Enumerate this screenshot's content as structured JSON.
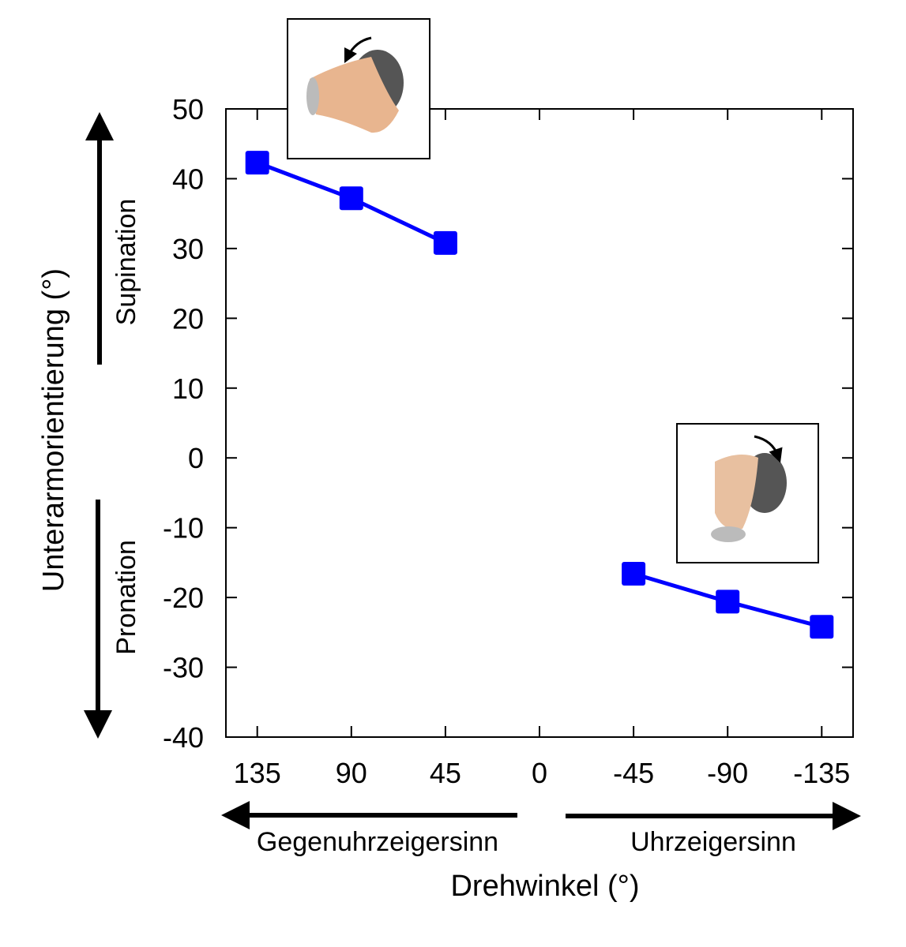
{
  "chart_data": {
    "type": "line",
    "title": "",
    "xlabel": "Drehwinkel (°)",
    "ylabel": "Unterarmorientierung (°)",
    "xlim": [
      150,
      -150
    ],
    "ylim": [
      -40,
      50
    ],
    "x_ticks": [
      135,
      90,
      45,
      0,
      -45,
      -90,
      -135
    ],
    "x_tick_labels": [
      "135",
      "90",
      "45",
      "0",
      "-45",
      "-90",
      "-135"
    ],
    "y_ticks": [
      50,
      40,
      30,
      20,
      10,
      0,
      -10,
      -20,
      -30,
      -40
    ],
    "y_tick_labels": [
      "50",
      "40",
      "30",
      "20",
      "10",
      "0",
      "-10",
      "-20",
      "-30",
      "-40"
    ],
    "grid": false,
    "series": [
      {
        "name": "Gegenuhrzeigersinn",
        "color": "#0000ff",
        "marker": "square",
        "x": [
          135,
          90,
          45
        ],
        "y": [
          42.3,
          37.2,
          30.8
        ]
      },
      {
        "name": "Uhrzeigersinn",
        "color": "#0000ff",
        "marker": "square",
        "x": [
          -45,
          -90,
          -135
        ],
        "y": [
          -16.6,
          -20.6,
          -24.2
        ]
      }
    ],
    "annotations": {
      "supination": "Supination",
      "pronation": "Pronation",
      "counterclockwise": "Gegenuhrzeigersinn",
      "clockwise": "Uhrzeigersinn"
    }
  }
}
